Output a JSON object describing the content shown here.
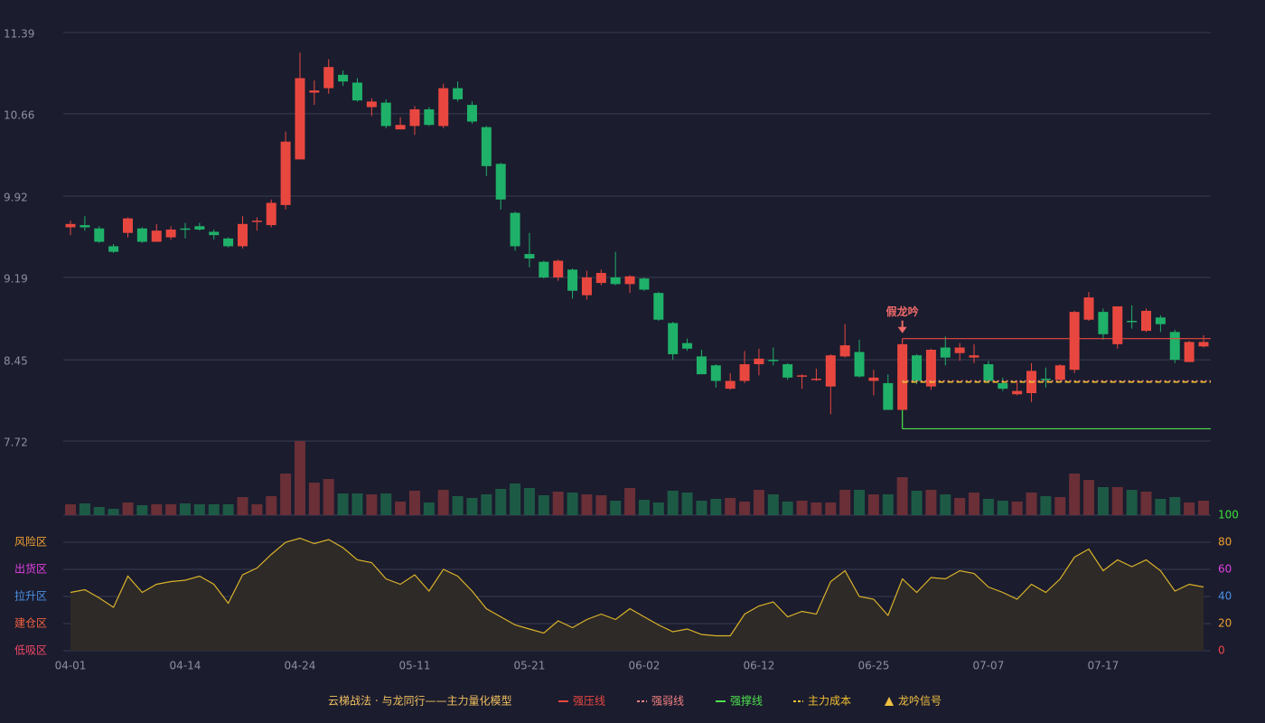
{
  "chart_data": {
    "type": "candlestick",
    "title": "云梯战法 · 与龙同行——主力量化模型",
    "categories": [
      "04-01",
      null,
      null,
      null,
      null,
      null,
      null,
      null,
      "04-14",
      null,
      null,
      null,
      null,
      null,
      null,
      null,
      "04-24",
      null,
      null,
      null,
      null,
      null,
      null,
      null,
      "05-11",
      null,
      null,
      null,
      null,
      null,
      null,
      null,
      "05-21",
      null,
      null,
      null,
      null,
      null,
      null,
      null,
      "06-02",
      null,
      null,
      null,
      null,
      null,
      null,
      null,
      "06-12",
      null,
      null,
      null,
      null,
      null,
      null,
      null,
      "06-25",
      null,
      null,
      null,
      null,
      null,
      null,
      null,
      "07-07",
      null,
      null,
      null,
      null,
      null,
      null,
      null,
      "07-17",
      null,
      null,
      null,
      null,
      null,
      null,
      null
    ],
    "open": [
      9.64,
      9.66,
      9.63,
      9.47,
      9.59,
      9.63,
      9.51,
      9.55,
      9.63,
      9.65,
      9.6,
      9.54,
      9.47,
      9.69,
      9.66,
      9.84,
      10.25,
      10.85,
      10.89,
      11.01,
      10.94,
      10.72,
      10.76,
      10.52,
      10.55,
      10.7,
      10.55,
      10.89,
      10.74,
      10.54,
      10.21,
      9.77,
      9.4,
      9.33,
      9.19,
      9.26,
      9.03,
      9.14,
      9.19,
      9.13,
      9.18,
      9.05,
      8.78,
      8.6,
      8.48,
      8.4,
      8.19,
      8.26,
      8.41,
      8.45,
      8.41,
      8.3,
      8.27,
      8.21,
      8.48,
      8.52,
      8.26,
      8.24,
      8.0,
      8.49,
      8.21,
      8.56,
      8.51,
      8.47,
      8.41,
      8.24,
      8.14,
      8.15,
      8.28,
      8.27,
      8.36,
      8.81,
      8.88,
      8.59,
      8.8,
      8.71,
      8.83,
      8.7,
      8.43,
      8.57
    ],
    "high": [
      9.7,
      9.74,
      9.65,
      9.49,
      9.73,
      9.64,
      9.67,
      9.65,
      9.68,
      9.68,
      9.62,
      9.55,
      9.74,
      9.73,
      9.89,
      10.5,
      11.21,
      10.96,
      11.15,
      11.05,
      10.98,
      10.8,
      10.79,
      10.63,
      10.73,
      10.72,
      10.93,
      10.95,
      10.77,
      10.55,
      10.22,
      9.78,
      9.59,
      9.34,
      9.35,
      9.27,
      9.25,
      9.26,
      9.42,
      9.21,
      9.19,
      9.06,
      8.79,
      8.64,
      8.54,
      8.41,
      8.33,
      8.53,
      8.55,
      8.56,
      8.42,
      8.32,
      8.37,
      8.5,
      8.77,
      8.63,
      8.36,
      8.32,
      8.6,
      8.5,
      8.55,
      8.66,
      8.6,
      8.59,
      8.44,
      8.29,
      8.26,
      8.42,
      8.38,
      8.41,
      8.89,
      9.06,
      8.91,
      8.93,
      8.94,
      8.91,
      8.85,
      8.72,
      8.62,
      8.67
    ],
    "low": [
      9.57,
      9.61,
      9.5,
      9.41,
      9.55,
      9.5,
      9.51,
      9.53,
      9.54,
      9.61,
      9.53,
      9.46,
      9.45,
      9.61,
      9.64,
      9.8,
      10.25,
      10.74,
      10.84,
      10.91,
      10.77,
      10.64,
      10.53,
      10.52,
      10.47,
      10.55,
      10.53,
      10.77,
      10.57,
      10.1,
      9.8,
      9.43,
      9.28,
      9.18,
      9.16,
      9.0,
      8.99,
      9.12,
      9.12,
      9.05,
      9.07,
      8.8,
      8.45,
      8.53,
      8.32,
      8.2,
      8.18,
      8.24,
      8.31,
      8.4,
      8.27,
      8.19,
      8.26,
      7.96,
      8.47,
      8.29,
      8.13,
      8.0,
      8.0,
      8.23,
      8.18,
      8.4,
      8.44,
      8.42,
      8.24,
      8.17,
      8.13,
      8.07,
      8.2,
      8.26,
      8.33,
      8.8,
      8.63,
      8.55,
      8.73,
      8.7,
      8.7,
      8.42,
      8.43,
      8.56
    ],
    "close": [
      9.67,
      9.64,
      9.51,
      9.42,
      9.72,
      9.51,
      9.61,
      9.62,
      9.62,
      9.62,
      9.57,
      9.47,
      9.67,
      9.7,
      9.86,
      10.41,
      10.98,
      10.87,
      11.08,
      10.95,
      10.78,
      10.77,
      10.55,
      10.56,
      10.7,
      10.56,
      10.89,
      10.79,
      10.59,
      10.19,
      9.89,
      9.47,
      9.36,
      9.19,
      9.34,
      9.07,
      9.19,
      9.23,
      9.13,
      9.2,
      9.08,
      8.81,
      8.5,
      8.55,
      8.32,
      8.26,
      8.26,
      8.41,
      8.46,
      8.44,
      8.29,
      8.31,
      8.28,
      8.49,
      8.58,
      8.3,
      8.29,
      8.0,
      8.59,
      8.26,
      8.54,
      8.47,
      8.56,
      8.49,
      8.26,
      8.19,
      8.17,
      8.35,
      8.27,
      8.4,
      8.88,
      9.01,
      8.68,
      8.93,
      8.79,
      8.89,
      8.77,
      8.45,
      8.61,
      8.61
    ],
    "up_color": "#e8473f",
    "down_color": "#1fb169",
    "ylim": [
      7.72,
      11.39
    ],
    "yticks": [
      7.72,
      8.45,
      9.19,
      9.92,
      10.66,
      11.39
    ],
    "grid": true,
    "lines": [
      {
        "name": "强压线",
        "color": "#e8473f",
        "style": "solid",
        "value": 8.64
      },
      {
        "name": "强弱线",
        "color": "#f08080",
        "style": "dotted",
        "value": 8.26
      },
      {
        "name": "强撑线",
        "color": "#4ee04e",
        "style": "solid",
        "value": 7.83
      },
      {
        "name": "主力成本",
        "color": "#f0c030",
        "style": "dashed",
        "value": 8.25
      }
    ],
    "signal": {
      "label": "假龙吟",
      "index": 58,
      "label_color": "#f06a6a",
      "name": "龙吟信号",
      "color": "#f0c040"
    },
    "volume": {
      "values": [
        12,
        13,
        9,
        7,
        14,
        11,
        12,
        12,
        13,
        12,
        12,
        12,
        20,
        12,
        21,
        46,
        82,
        36,
        40,
        24,
        24,
        23,
        24,
        15,
        27,
        14,
        28,
        21,
        19,
        23,
        29,
        35,
        30,
        22,
        26,
        25,
        23,
        22,
        16,
        30,
        17,
        14,
        27,
        25,
        16,
        18,
        19,
        15,
        28,
        23,
        15,
        16,
        14,
        14,
        28,
        28,
        23,
        23,
        42,
        27,
        28,
        23,
        19,
        25,
        18,
        16,
        15,
        25,
        21,
        20,
        46,
        39,
        31,
        31,
        28,
        26,
        18,
        20,
        14,
        16
      ],
      "ylim": [
        0,
        82
      ],
      "up_color": "#6a2f37",
      "down_color": "#1d5a45"
    },
    "oscillator": {
      "values": [
        43,
        45,
        39,
        32,
        55,
        43,
        49,
        51,
        52,
        55,
        49,
        35,
        56,
        61,
        71,
        80,
        83,
        79,
        82,
        76,
        67,
        65,
        53,
        49,
        56,
        44,
        60,
        55,
        44,
        31,
        25,
        19,
        16,
        13,
        22,
        17,
        23,
        27,
        23,
        31,
        25,
        19,
        14,
        16,
        12,
        11,
        11,
        27,
        33,
        36,
        25,
        29,
        27,
        51,
        59,
        40,
        38,
        26,
        53,
        43,
        54,
        53,
        59,
        57,
        47,
        43,
        38,
        49,
        43,
        53,
        69,
        75,
        59,
        67,
        62,
        67,
        59,
        44,
        49,
        47
      ],
      "ylim": [
        0,
        100
      ],
      "yticks": [
        0,
        20,
        40,
        60,
        80,
        100
      ],
      "ytick_colors": [
        "#f04848",
        "#f0a030",
        "#4a90e2",
        "#e040e0",
        "#f0a030",
        "#3ae23a"
      ],
      "line_color": "#d9b22a",
      "fill_color": "#2e2a27",
      "zones": [
        {
          "label": "低吸区",
          "value": 0,
          "color": "#f04868"
        },
        {
          "label": "建仓区",
          "value": 20,
          "color": "#f06040"
        },
        {
          "label": "拉升区",
          "value": 40,
          "color": "#4a90e2"
        },
        {
          "label": "出货区",
          "value": 60,
          "color": "#e040e0"
        },
        {
          "label": "风险区",
          "value": 80,
          "color": "#f0a030"
        }
      ]
    }
  }
}
